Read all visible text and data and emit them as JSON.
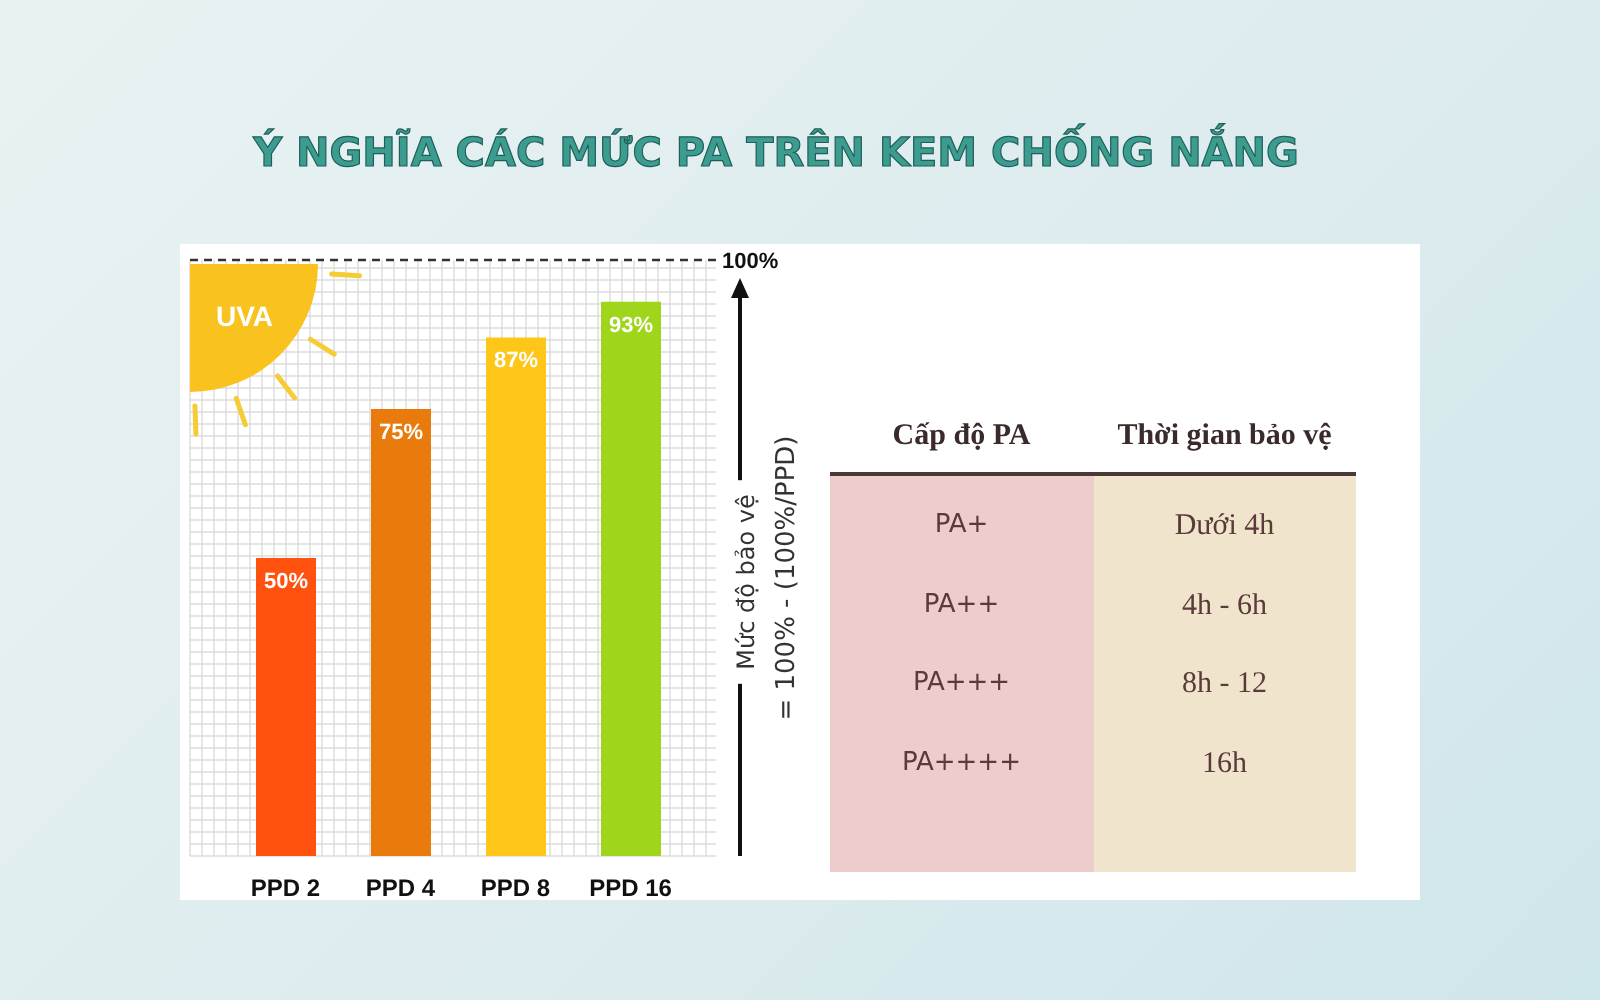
{
  "chart_data": [
    {
      "type": "bar",
      "title": "Ý NGHĨA CÁC MỨC PA TRÊN KEM CHỐNG NẮNG",
      "ylabel": "Mức độ bảo vệ\n= 100% - (100%/PPD)",
      "annotations": [
        "UVA"
      ],
      "categories": [
        "PPD 2",
        "PPD 4",
        "PPD 8",
        "PPD 16"
      ],
      "values": [
        50,
        75,
        87,
        93
      ],
      "colors": [
        "#ff520e",
        "#e97b0c",
        "#fec619",
        "#9fd61c"
      ],
      "value_labels": [
        "50%",
        "75%",
        "87%",
        "93%"
      ],
      "ylim": [
        0,
        100
      ],
      "grid": true,
      "tick_labels": "x",
      "ref_lines": [
        {
          "axis": "y",
          "value": 100,
          "label": "100%",
          "line_style": "dashed",
          "color": "#333333"
        }
      ]
    },
    {
      "type": "other",
      "ylabel": "Cấp độ PA",
      "categories": [
        "Thời gian bảo vệ"
      ],
      "y_categories": [
        "PA+",
        "PA++",
        "PA+++",
        "PA++++"
      ],
      "cell_labels": [
        [
          "Dưới 4h"
        ],
        [
          "4h - 6h"
        ],
        [
          "8h - 12"
        ],
        [
          "16h"
        ]
      ],
      "colors": [
        "#edcccc",
        "#f0e5cc"
      ]
    }
  ]
}
